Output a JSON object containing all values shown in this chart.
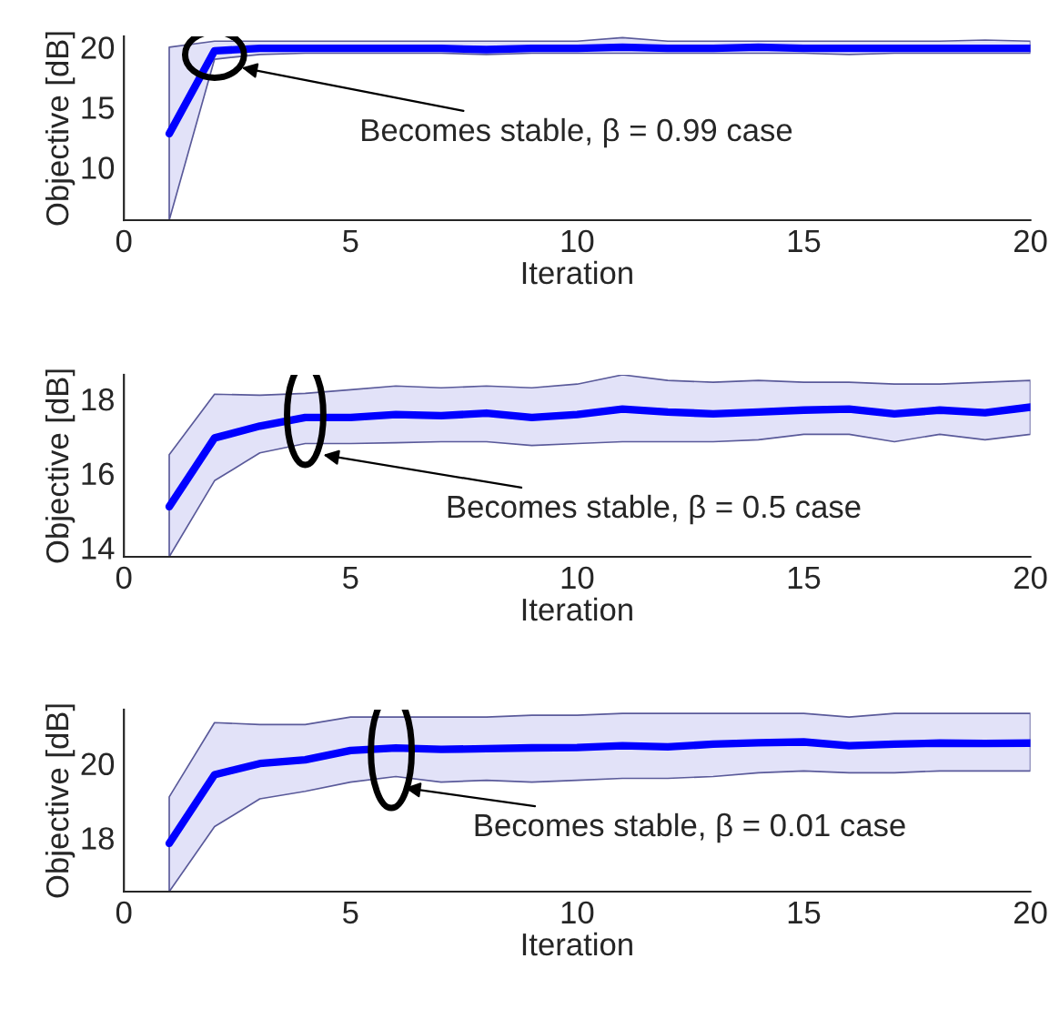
{
  "chart_data": [
    {
      "type": "line",
      "xlabel": "Iteration",
      "ylabel": "Objective [dB]",
      "xlim": [
        0,
        20
      ],
      "xticks": [
        0,
        5,
        10,
        15,
        20
      ],
      "ylim": [
        5.6,
        20.9
      ],
      "yticks": [
        10,
        15,
        20
      ],
      "grid": false,
      "line_style": "solid",
      "x": [
        1,
        2,
        3,
        4,
        5,
        6,
        7,
        8,
        9,
        10,
        11,
        12,
        13,
        14,
        15,
        16,
        17,
        18,
        19,
        20
      ],
      "series": [
        {
          "color": "#0000ff",
          "values": [
            12.8,
            19.7,
            19.9,
            19.9,
            19.9,
            19.9,
            19.9,
            19.8,
            19.9,
            19.9,
            20.0,
            19.9,
            19.9,
            20.0,
            19.9,
            19.9,
            19.9,
            19.9,
            19.9,
            19.9
          ],
          "lower": [
            5.6,
            19.0,
            19.4,
            19.5,
            19.5,
            19.5,
            19.5,
            19.4,
            19.5,
            19.5,
            19.5,
            19.5,
            19.5,
            19.5,
            19.5,
            19.4,
            19.5,
            19.5,
            19.5,
            19.5
          ],
          "upper": [
            20.0,
            20.5,
            20.5,
            20.5,
            20.5,
            20.5,
            20.5,
            20.5,
            20.5,
            20.5,
            20.8,
            20.5,
            20.5,
            20.5,
            20.5,
            20.5,
            20.5,
            20.5,
            20.6,
            20.5
          ]
        }
      ],
      "annotations": [
        "Becomes stable, β = 0.99 case"
      ]
    },
    {
      "type": "line",
      "xlabel": "Iteration",
      "ylabel": "Objective [dB]",
      "xlim": [
        0,
        20
      ],
      "xticks": [
        0,
        5,
        10,
        15,
        20
      ],
      "ylim": [
        13.75,
        18.65
      ],
      "yticks": [
        14,
        16,
        18
      ],
      "grid": false,
      "line_style": "solid",
      "x": [
        1,
        2,
        3,
        4,
        5,
        6,
        7,
        8,
        9,
        10,
        11,
        12,
        13,
        14,
        15,
        16,
        17,
        18,
        19,
        20
      ],
      "series": [
        {
          "color": "#0000ff",
          "values": [
            15.1,
            16.95,
            17.27,
            17.5,
            17.5,
            17.58,
            17.55,
            17.62,
            17.5,
            17.58,
            17.73,
            17.65,
            17.6,
            17.65,
            17.7,
            17.73,
            17.6,
            17.7,
            17.63,
            17.78
          ],
          "lower": [
            13.75,
            15.8,
            16.55,
            16.8,
            16.8,
            16.82,
            16.85,
            16.85,
            16.75,
            16.8,
            16.85,
            16.85,
            16.85,
            16.9,
            17.05,
            17.05,
            16.85,
            17.05,
            16.9,
            17.05
          ],
          "upper": [
            16.5,
            18.13,
            18.1,
            18.15,
            18.25,
            18.35,
            18.3,
            18.35,
            18.3,
            18.4,
            18.65,
            18.5,
            18.45,
            18.5,
            18.45,
            18.45,
            18.4,
            18.4,
            18.45,
            18.5
          ]
        }
      ],
      "annotations": [
        "Becomes stable, β = 0.5 case"
      ]
    },
    {
      "type": "line",
      "xlabel": "Iteration",
      "ylabel": "Objective [dB]",
      "xlim": [
        0,
        20
      ],
      "xticks": [
        0,
        5,
        10,
        15,
        20
      ],
      "ylim": [
        16.55,
        21.45
      ],
      "yticks": [
        18,
        20
      ],
      "grid": false,
      "line_style": "solid",
      "x": [
        1,
        2,
        3,
        4,
        5,
        6,
        7,
        8,
        9,
        10,
        11,
        12,
        13,
        14,
        15,
        16,
        17,
        18,
        19,
        20
      ],
      "series": [
        {
          "color": "#0000ff",
          "values": [
            17.85,
            19.7,
            20.0,
            20.1,
            20.35,
            20.42,
            20.38,
            20.4,
            20.42,
            20.43,
            20.48,
            20.45,
            20.52,
            20.56,
            20.58,
            20.48,
            20.52,
            20.55,
            20.54,
            20.55
          ],
          "lower": [
            16.55,
            18.3,
            19.05,
            19.25,
            19.5,
            19.65,
            19.5,
            19.55,
            19.5,
            19.55,
            19.6,
            19.6,
            19.65,
            19.75,
            19.8,
            19.75,
            19.75,
            19.8,
            19.8,
            19.8
          ],
          "upper": [
            19.1,
            21.1,
            21.05,
            21.05,
            21.25,
            21.25,
            21.25,
            21.25,
            21.3,
            21.3,
            21.35,
            21.35,
            21.35,
            21.35,
            21.35,
            21.25,
            21.35,
            21.35,
            21.35,
            21.35
          ]
        }
      ],
      "annotations": [
        "Becomes stable, β = 0.01 case"
      ]
    }
  ]
}
